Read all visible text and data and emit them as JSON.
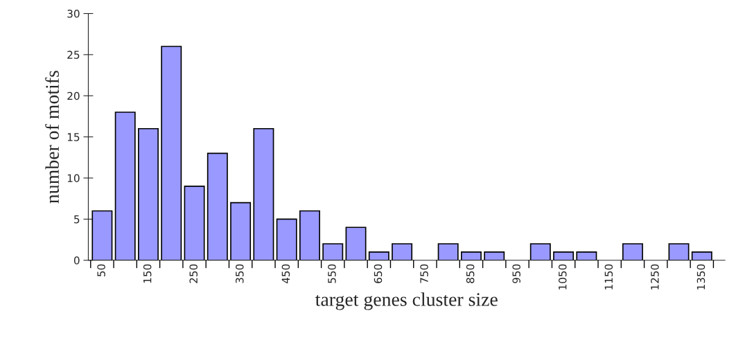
{
  "chart_data": {
    "type": "bar",
    "xlabel": "target genes cluster size",
    "ylabel": "number of motifs",
    "categories": [
      "50",
      null,
      "150",
      null,
      "250",
      null,
      "350",
      null,
      "450",
      null,
      "550",
      null,
      "650",
      null,
      "750",
      null,
      "850",
      null,
      "950",
      null,
      "1050",
      null,
      "1150",
      null,
      "1250",
      null,
      "1350"
    ],
    "values": [
      6,
      18,
      16,
      26,
      9,
      13,
      7,
      16,
      5,
      6,
      2,
      4,
      1,
      2,
      0,
      2,
      1,
      1,
      0,
      2,
      1,
      1,
      0,
      2,
      0,
      2,
      1
    ],
    "color": "#9999ff",
    "ylim": [
      0,
      30
    ],
    "yticks": [
      0,
      5,
      10,
      15,
      20,
      25,
      30
    ],
    "grid": false,
    "legend": false
  }
}
